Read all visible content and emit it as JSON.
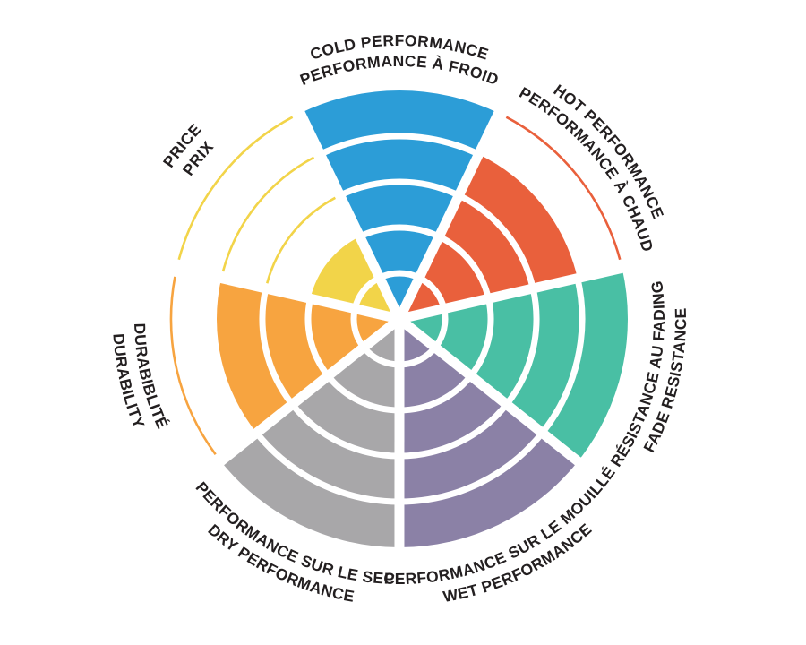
{
  "chart_data": {
    "type": "polar-bar",
    "description": "Seven-sector radial rating wheel (coxcomb). Each sector is filled from the center outward to its rating out of 5 concentric rings; unreached ring boundaries are drawn as thin arcs in the sector color.",
    "rings": 5,
    "max_value": 5,
    "background_color": "#FFFFFF",
    "ring_divider_color": "#FFFFFF",
    "text_color": "#231F20",
    "categories": [
      {
        "id": "cold",
        "label_top": "COLD PERFORMANCE",
        "label_bottom": "PERFORMANCE À FROID",
        "value": 5,
        "max": 5,
        "color": "#2C9DD7",
        "angle_deg": 0,
        "label_flipped": false
      },
      {
        "id": "hot",
        "label_top": "HOT PERFORMANCE",
        "label_bottom": "PERFORMANCE À CHAUD",
        "value": 4,
        "max": 5,
        "color": "#E9603C",
        "angle_deg": 51.43,
        "label_flipped": false
      },
      {
        "id": "fade",
        "label_top": "RÉSISTANCE AU FADING",
        "label_bottom": "FADE RESISTANCE",
        "value": 5,
        "max": 5,
        "color": "#49BFA4",
        "angle_deg": 102.86,
        "label_flipped": true
      },
      {
        "id": "wet",
        "label_top": "PERFORMANCE SUR LE MOUILLÉ",
        "label_bottom": "WET PERFORMANCE",
        "value": 5,
        "max": 5,
        "color": "#8B81A6",
        "angle_deg": 154.29,
        "label_flipped": true
      },
      {
        "id": "dry",
        "label_top": "PERFORMANCE SUR LE SEC",
        "label_bottom": "DRY PERFORMANCE",
        "value": 5,
        "max": 5,
        "color": "#A8A7A9",
        "angle_deg": 205.71,
        "label_flipped": true
      },
      {
        "id": "durability",
        "label_top": "DURABIBLITÉ",
        "label_bottom": "DURABILITY",
        "value": 4,
        "max": 5,
        "color": "#F7A440",
        "angle_deg": 257.14,
        "label_flipped": true
      },
      {
        "id": "price",
        "label_top": "PRICE",
        "label_bottom": "PRIX",
        "value": 2,
        "max": 5,
        "color": "#F2D449",
        "angle_deg": 308.57,
        "label_flipped": false
      }
    ]
  }
}
